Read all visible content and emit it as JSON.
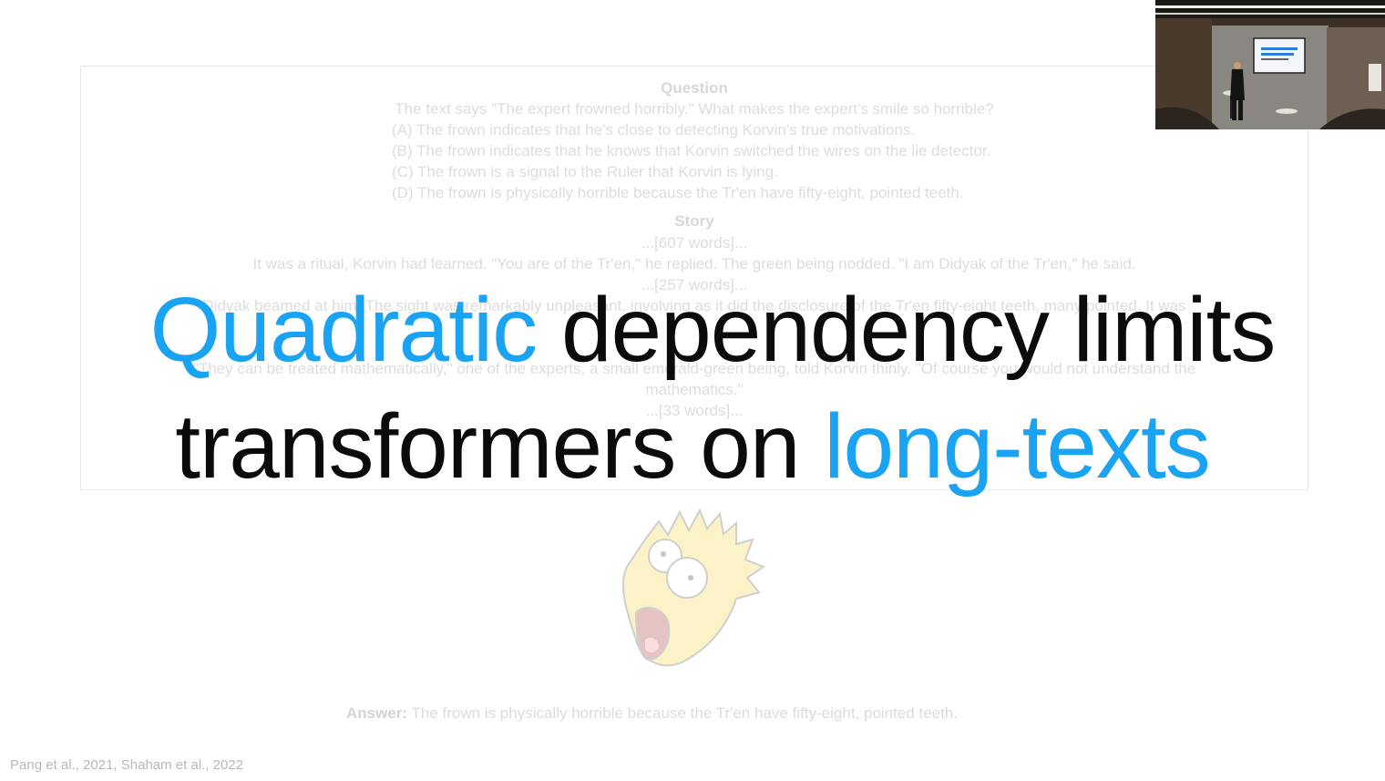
{
  "example": {
    "question_heading": "Question",
    "question_text": "The text says \"The expert frowned horribly.\" What makes the expert's smile so horrible?",
    "options": [
      "(A) The frown indicates that he's close to detecting Korvin's true motivations.",
      "(B) The frown indicates that he knows that Korvin switched the wires on the lie detector.",
      "(C) The frown is a signal to the Ruler that Korvin is lying.",
      "(D) The frown is physically horrible because the Tr'en have fifty-eight, pointed teeth."
    ],
    "story_heading": "Story",
    "word_counts": [
      "...[607 words]...",
      "...[257 words]...",
      "...[33 words]..."
    ],
    "story_line_1": "It was a ritual, Korvin had learned. \"You are of the Tr'en,\" he replied. The green being nodded. \"I am Didyak of the Tr'en,\" he said.",
    "story_line_2": "Didyak beamed at him. The sight was remarkably unpleasant, involving as it did the disclosure of the Tr'en fifty-eight teeth, many pointed. It was",
    "story_line_3": "\"They can be treated mathematically,\" one of the experts, a small emerald-green being, told Korvin thinly. \"Of course you would not understand the",
    "story_line_4": "mathematics.\"",
    "answer_label": "Answer:",
    "answer_text": "The frown is physically horrible because the Tr'en have fifty-eight, pointed teeth."
  },
  "headline": {
    "line1_accent": "Quadratic",
    "line1_rest": " dependency limits",
    "line2_start": "transformers on ",
    "line2_accent": "long-texts"
  },
  "citation": "Pang et al., 2021, Shaham et al., 2022",
  "colors": {
    "accent": "#1aa3f2",
    "text": "#0b0b0b",
    "faded": "#dddddd"
  }
}
